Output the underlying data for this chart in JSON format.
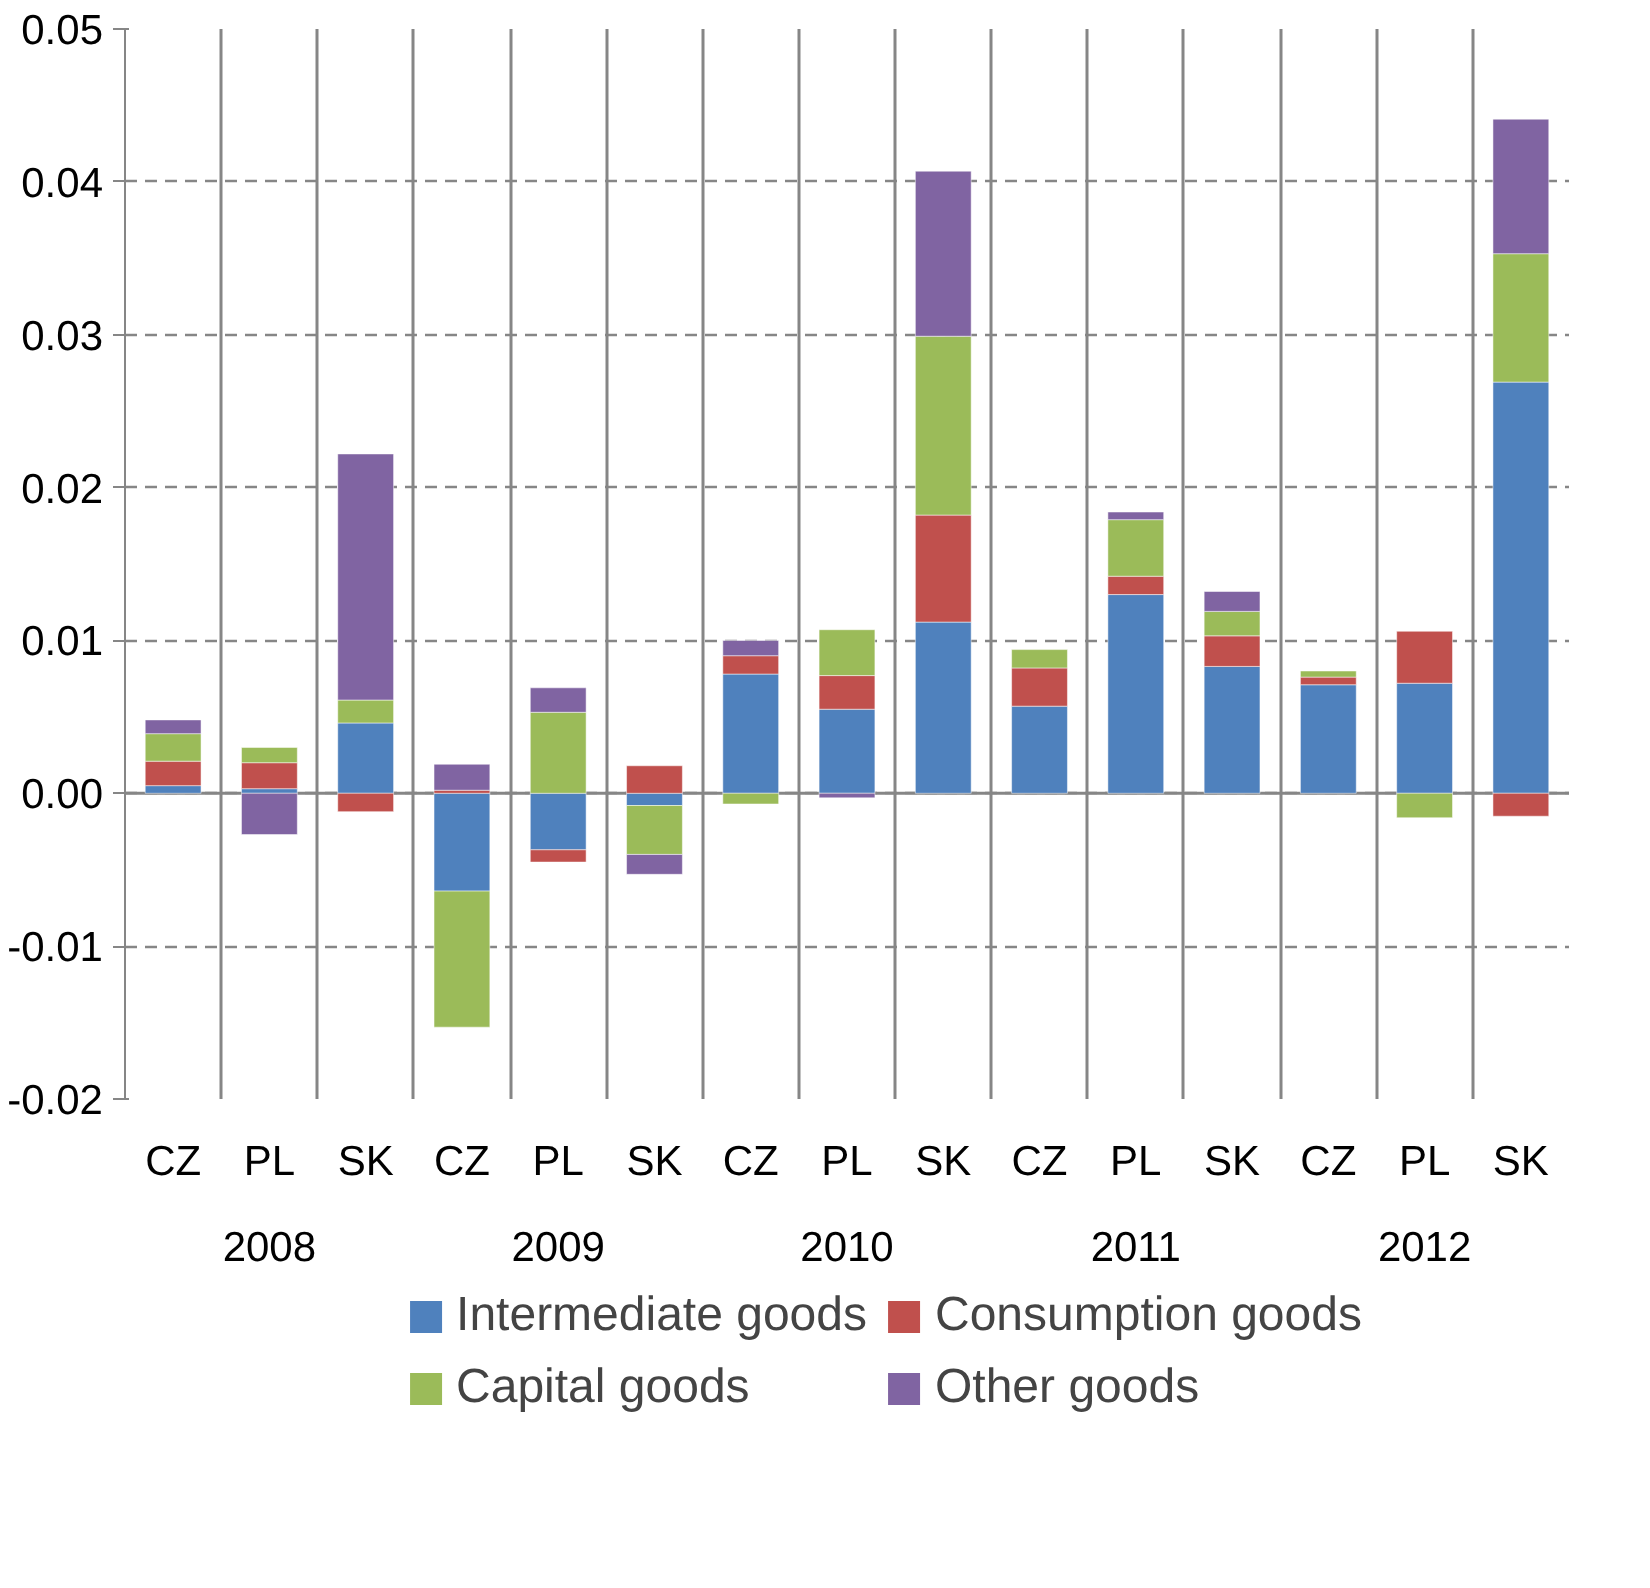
{
  "chart_data": {
    "type": "bar",
    "stacked": true,
    "categories": [
      "CZ",
      "PL",
      "SK",
      "CZ",
      "PL",
      "SK",
      "CZ",
      "PL",
      "SK",
      "CZ",
      "PL",
      "SK",
      "CZ",
      "PL",
      "SK"
    ],
    "annotations": [
      "2008",
      "2009",
      "2010",
      "2011",
      "2012"
    ],
    "series": [
      {
        "name": "Intermediate goods",
        "color": "#4f81bd",
        "values": [
          0.0005,
          0.0003,
          0.0046,
          -0.0064,
          -0.0037,
          -0.0008,
          0.0078,
          0.0055,
          0.0112,
          0.0057,
          0.013,
          0.0083,
          0.0071,
          0.0072,
          0.0269
        ]
      },
      {
        "name": "Consumption goods",
        "color": "#c0504d",
        "values": [
          0.0016,
          0.0017,
          -0.0012,
          0.0002,
          -0.0008,
          0.0018,
          0.0012,
          0.0022,
          0.007,
          0.0025,
          0.0012,
          0.002,
          0.0005,
          0.0034,
          -0.0015
        ]
      },
      {
        "name": "Capital goods",
        "color": "#9bbb59",
        "values": [
          0.0018,
          0.001,
          0.0015,
          -0.0089,
          0.0053,
          -0.0032,
          -0.0007,
          0.003,
          0.0117,
          0.0012,
          0.0037,
          0.0016,
          0.0004,
          -0.0016,
          0.0084
        ]
      },
      {
        "name": "Other goods",
        "color": "#8064a2",
        "values": [
          0.0009,
          -0.0027,
          0.0161,
          0.0017,
          0.0016,
          -0.0013,
          0.001,
          -0.0003,
          0.0108,
          null,
          0.0005,
          0.0013,
          null,
          null,
          0.0088
        ]
      }
    ],
    "ylim": [
      -0.02,
      0.05
    ],
    "yticks": [
      -0.02,
      -0.01,
      {
        "value": 0,
        "label": "0.00"
      },
      0.01,
      0.02,
      0.03,
      0.04,
      0.05
    ],
    "grid": true,
    "legend": "bottom"
  }
}
